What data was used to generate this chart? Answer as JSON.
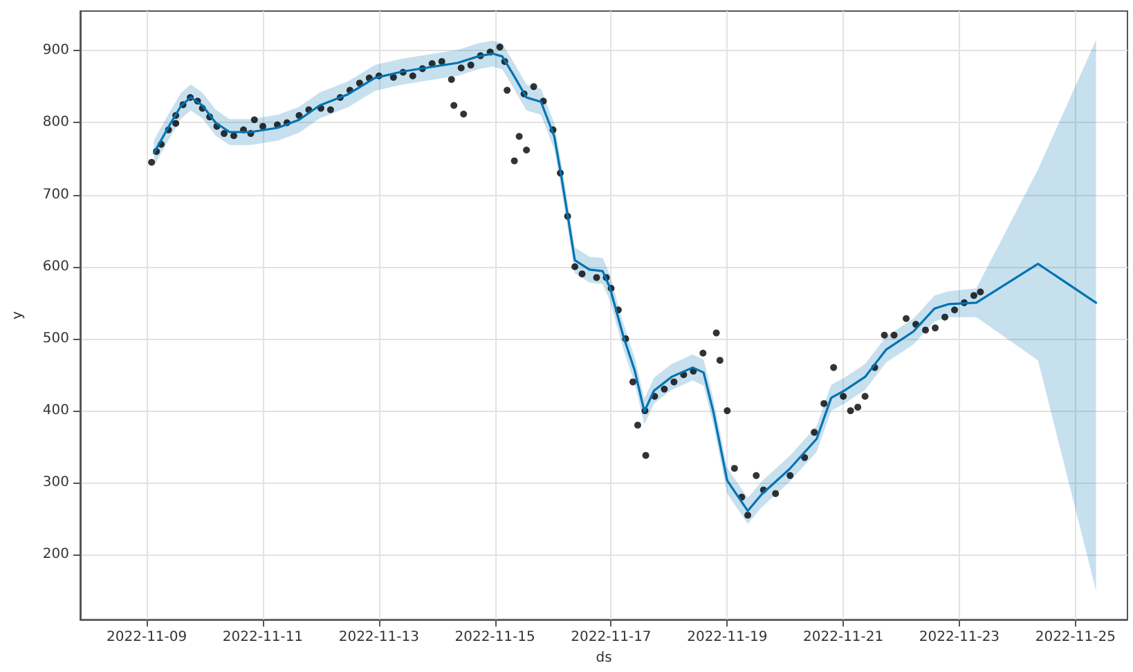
{
  "chart_data": {
    "type": "line",
    "xlabel": "ds",
    "ylabel": "y",
    "xlim": [
      "2022-11-07T20:30",
      "2022-11-25T21:30"
    ],
    "xticks": [
      "2022-11-09",
      "2022-11-11",
      "2022-11-13",
      "2022-11-15",
      "2022-11-17",
      "2022-11-19",
      "2022-11-21",
      "2022-11-23",
      "2022-11-25"
    ],
    "ylim": [
      110,
      955
    ],
    "yticks": [
      200,
      300,
      400,
      500,
      600,
      700,
      800,
      900
    ],
    "grid": true,
    "series": [
      {
        "type": "scatter",
        "marker": "circle",
        "color": "#000000",
        "x": [
          "2022-11-09T02:00",
          "2022-11-09T04:00",
          "2022-11-09T06:00",
          "2022-11-09T09:00",
          "2022-11-09T12:00",
          "2022-11-09T12:00",
          "2022-11-09T15:00",
          "2022-11-09T18:00",
          "2022-11-09T21:00",
          "2022-11-09T23:00",
          "2022-11-10T02:00",
          "2022-11-10T05:00",
          "2022-11-10T08:00",
          "2022-11-10T12:00",
          "2022-11-10T16:00",
          "2022-11-10T19:00",
          "2022-11-10T20:30",
          "2022-11-11T00:00",
          "2022-11-11T06:00",
          "2022-11-11T10:00",
          "2022-11-11T15:00",
          "2022-11-11T19:00",
          "2022-11-12T00:00",
          "2022-11-12T04:00",
          "2022-11-12T08:00",
          "2022-11-12T12:00",
          "2022-11-12T16:00",
          "2022-11-12T20:00",
          "2022-11-13T00:00",
          "2022-11-13T06:00",
          "2022-11-13T10:00",
          "2022-11-13T14:00",
          "2022-11-13T18:00",
          "2022-11-13T22:00",
          "2022-11-14T02:00",
          "2022-11-14T06:00",
          "2022-11-14T07:00",
          "2022-11-14T10:00",
          "2022-11-14T11:00",
          "2022-11-14T14:00",
          "2022-11-14T18:00",
          "2022-11-14T22:00",
          "2022-11-15T02:00",
          "2022-11-15T04:00",
          "2022-11-15T05:00",
          "2022-11-15T08:00",
          "2022-11-15T10:00",
          "2022-11-15T12:00",
          "2022-11-15T13:00",
          "2022-11-15T16:00",
          "2022-11-15T20:00",
          "2022-11-16T00:00",
          "2022-11-16T03:00",
          "2022-11-16T06:00",
          "2022-11-16T09:00",
          "2022-11-16T12:00",
          "2022-11-16T18:00",
          "2022-11-16T22:00",
          "2022-11-17T00:00",
          "2022-11-17T03:00",
          "2022-11-17T06:00",
          "2022-11-17T09:00",
          "2022-11-17T11:00",
          "2022-11-17T14:20",
          "2022-11-17T14:00",
          "2022-11-17T18:00",
          "2022-11-17T22:00",
          "2022-11-18T02:00",
          "2022-11-18T06:00",
          "2022-11-18T10:00",
          "2022-11-18T14:00",
          "2022-11-18T19:30",
          "2022-11-18T21:00",
          "2022-11-19T00:00",
          "2022-11-19T03:00",
          "2022-11-19T06:00",
          "2022-11-19T08:30",
          "2022-11-19T12:00",
          "2022-11-19T15:00",
          "2022-11-19T20:00",
          "2022-11-20T02:00",
          "2022-11-20T08:00",
          "2022-11-20T12:00",
          "2022-11-20T16:00",
          "2022-11-20T20:00",
          "2022-11-21T00:00",
          "2022-11-21T03:00",
          "2022-11-21T06:00",
          "2022-11-21T09:00",
          "2022-11-21T13:00",
          "2022-11-21T17:00",
          "2022-11-21T21:00",
          "2022-11-22T02:00",
          "2022-11-22T06:00",
          "2022-11-22T10:00",
          "2022-11-22T14:00",
          "2022-11-22T18:00",
          "2022-11-22T22:00",
          "2022-11-23T02:00",
          "2022-11-23T06:00",
          "2022-11-23T08:40"
        ],
        "values": [
          745,
          760,
          770,
          790,
          810,
          799,
          825,
          835,
          830,
          820,
          808,
          795,
          785,
          782,
          790,
          785,
          804,
          795,
          797,
          800,
          810,
          818,
          820,
          818,
          835,
          845,
          855,
          862,
          865,
          863,
          870,
          865,
          875,
          882,
          885,
          860,
          824,
          876,
          812,
          880,
          893,
          898,
          905,
          885,
          845,
          747,
          781,
          840,
          762,
          850,
          830,
          790,
          730,
          670,
          600,
          590,
          585,
          585,
          570,
          540,
          500,
          440,
          380,
          338,
          400,
          420,
          430,
          440,
          450,
          455,
          480,
          508,
          470,
          400,
          320,
          280,
          255,
          310,
          290,
          285,
          310,
          335,
          370,
          410,
          460,
          420,
          400,
          405,
          420,
          460,
          505,
          505,
          528,
          520,
          512,
          515,
          530,
          540,
          550,
          560,
          565
        ]
      },
      {
        "color": "#0072b2",
        "x": [
          "2022-11-09T03:00",
          "2022-11-09T08:30",
          "2022-11-09T14:15",
          "2022-11-09T18:15",
          "2022-11-09T23:00",
          "2022-11-10T04:30",
          "2022-11-10T10:15",
          "2022-11-10T19:00",
          "2022-11-11T06:15",
          "2022-11-11T15:00",
          "2022-11-11T23:30",
          "2022-11-12T11:00",
          "2022-11-12T22:15",
          "2022-11-13T09:45",
          "2022-11-13T21:00",
          "2022-11-14T08:30",
          "2022-11-14T17:00",
          "2022-11-14T23:00",
          "2022-11-15T03:00",
          "2022-11-15T07:30",
          "2022-11-15T13:00",
          "2022-11-15T19:00",
          "2022-11-16T00:30",
          "2022-11-16T03:30",
          "2022-11-16T06:15",
          "2022-11-16T09:00",
          "2022-11-16T15:00",
          "2022-11-16T20:30",
          "2022-11-16T23:30",
          "2022-11-17T05:00",
          "2022-11-17T09:45",
          "2022-11-17T13:45",
          "2022-11-17T17:45",
          "2022-11-18T01:00",
          "2022-11-18T09:45",
          "2022-11-18T14:15",
          "2022-11-18T18:15",
          "2022-11-19T00:00",
          "2022-11-19T08:30",
          "2022-11-19T14:15",
          "2022-11-20T01:45",
          "2022-11-20T13:00",
          "2022-11-20T19:00",
          "2022-11-21T00:30",
          "2022-11-21T09:00",
          "2022-11-21T17:45",
          "2022-11-22T05:00",
          "2022-11-22T13:45",
          "2022-11-22T19:30",
          "2022-11-23T07:00",
          "2022-11-24T08:30",
          "2022-11-25T08:30"
        ],
        "values": [
          758,
          791,
          824,
          835,
          824,
          800,
          787,
          787,
          793,
          804,
          824,
          839,
          862,
          871,
          877,
          883,
          892,
          896,
          892,
          867,
          835,
          829,
          781,
          724,
          667,
          609,
          596,
          594,
          571,
          504,
          456,
          399,
          428,
          447,
          460,
          453,
          399,
          303,
          261,
          284,
          319,
          361,
          418,
          428,
          447,
          485,
          510,
          542,
          548,
          550,
          604,
          550
        ],
        "lower": [
          740,
          773,
          806,
          817,
          806,
          782,
          769,
          769,
          775,
          786,
          806,
          821,
          844,
          853,
          859,
          865,
          874,
          878,
          874,
          849,
          817,
          811,
          763,
          706,
          649,
          591,
          578,
          576,
          553,
          486,
          438,
          381,
          410,
          429,
          442,
          435,
          381,
          285,
          243,
          266,
          301,
          343,
          400,
          410,
          429,
          467,
          492,
          524,
          530,
          530,
          470,
          150
        ],
        "upper": [
          776,
          809,
          842,
          853,
          842,
          818,
          805,
          805,
          811,
          822,
          842,
          857,
          880,
          889,
          895,
          901,
          910,
          914,
          910,
          885,
          853,
          847,
          799,
          742,
          685,
          627,
          614,
          612,
          589,
          522,
          474,
          417,
          446,
          465,
          478,
          471,
          417,
          321,
          279,
          302,
          337,
          379,
          436,
          446,
          465,
          503,
          528,
          560,
          566,
          570,
          735,
          915
        ]
      }
    ]
  }
}
